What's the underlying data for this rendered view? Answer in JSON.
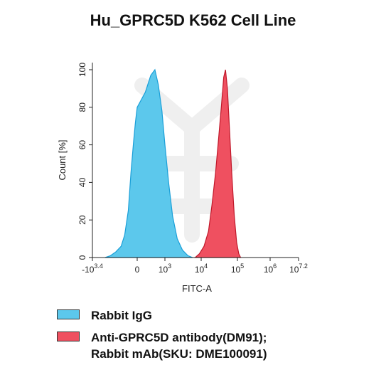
{
  "chart_data": {
    "type": "area",
    "title": "Hu_GPRC5D K562 Cell Line",
    "xlabel": "FITC-A",
    "ylabel": "Count [%]",
    "ylim": [
      0,
      100
    ],
    "xscale": "biexponential",
    "y_ticks": [
      0,
      20,
      40,
      60,
      80,
      100
    ],
    "x_ticks": [
      {
        "label_base": "-10",
        "label_exp": "3.4",
        "value": -2512
      },
      {
        "label_base": "0",
        "label_exp": "",
        "value": 0
      },
      {
        "label_base": "10",
        "label_exp": "3",
        "value": 1000
      },
      {
        "label_base": "10",
        "label_exp": "4",
        "value": 10000
      },
      {
        "label_base": "10",
        "label_exp": "5",
        "value": 100000
      },
      {
        "label_base": "10",
        "label_exp": "6",
        "value": 1000000
      },
      {
        "label_base": "10",
        "label_exp": "7.2",
        "value": 15848932
      }
    ],
    "series": [
      {
        "name": "Rabbit IgG",
        "color": "#5cc8ec",
        "stroke": "#1a9fd8",
        "points": [
          [
            -1800,
            0
          ],
          [
            -1500,
            1
          ],
          [
            -1200,
            3
          ],
          [
            -900,
            6
          ],
          [
            -700,
            12
          ],
          [
            -500,
            25
          ],
          [
            -350,
            45
          ],
          [
            -200,
            62
          ],
          [
            -100,
            72
          ],
          [
            0,
            80
          ],
          [
            150,
            88
          ],
          [
            300,
            97
          ],
          [
            450,
            100
          ],
          [
            600,
            92
          ],
          [
            800,
            78
          ],
          [
            1000,
            60
          ],
          [
            1300,
            40
          ],
          [
            1700,
            22
          ],
          [
            2300,
            10
          ],
          [
            3200,
            4
          ],
          [
            4500,
            1
          ],
          [
            6000,
            0
          ]
        ]
      },
      {
        "name": "Anti-GPRC5D antibody(DM91); Rabbit mAb(SKU: DME100091)",
        "color": "#ef5060",
        "stroke": "#c0182a",
        "points": [
          [
            7000,
            0
          ],
          [
            9000,
            2
          ],
          [
            12000,
            6
          ],
          [
            16000,
            14
          ],
          [
            20000,
            28
          ],
          [
            25000,
            45
          ],
          [
            30000,
            62
          ],
          [
            36000,
            80
          ],
          [
            42000,
            96
          ],
          [
            47000,
            100
          ],
          [
            53000,
            90
          ],
          [
            60000,
            70
          ],
          [
            70000,
            45
          ],
          [
            82000,
            22
          ],
          [
            95000,
            8
          ],
          [
            110000,
            2
          ],
          [
            125000,
            0
          ]
        ]
      }
    ],
    "grid": false,
    "legend_position": "bottom"
  },
  "legend": [
    {
      "swatch_color": "#5cc8ec",
      "lines": [
        "Rabbit IgG"
      ]
    },
    {
      "swatch_color": "#ef5060",
      "lines": [
        "Anti-GPRC5D antibody(DM91);",
        "Rabbit mAb(SKU: DME100091)"
      ]
    }
  ]
}
